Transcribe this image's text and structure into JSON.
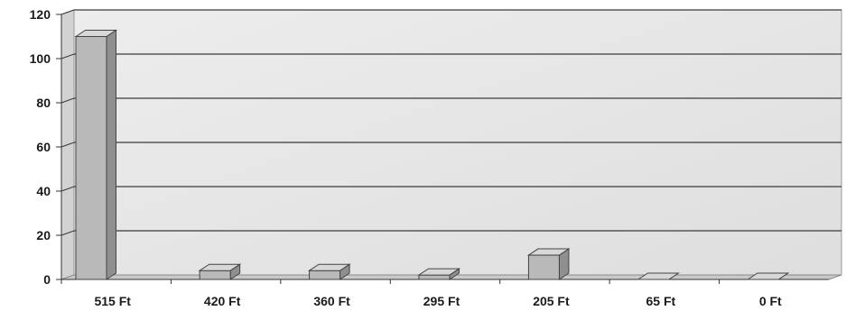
{
  "chart_data": {
    "type": "bar",
    "categories": [
      "515 Ft",
      "420 Ft",
      "360 Ft",
      "295 Ft",
      "205 Ft",
      "65 Ft",
      "0 Ft"
    ],
    "values": [
      110,
      4,
      4,
      2,
      11,
      0,
      0
    ],
    "title": "",
    "xlabel": "",
    "ylabel": "",
    "ylim": [
      0,
      120
    ],
    "yticks": [
      "0",
      "20",
      "40",
      "60",
      "80",
      "100",
      "120"
    ],
    "grid": true,
    "legend": "none",
    "style": "3d-column",
    "colors": {
      "bar_front": "#b9b9b9",
      "bar_top": "#d8d8d8",
      "bar_side": "#8f8f8f",
      "wall": "#e6e6e6",
      "floor": "#c9c9c9",
      "gridline": "#3a3a3a"
    }
  }
}
